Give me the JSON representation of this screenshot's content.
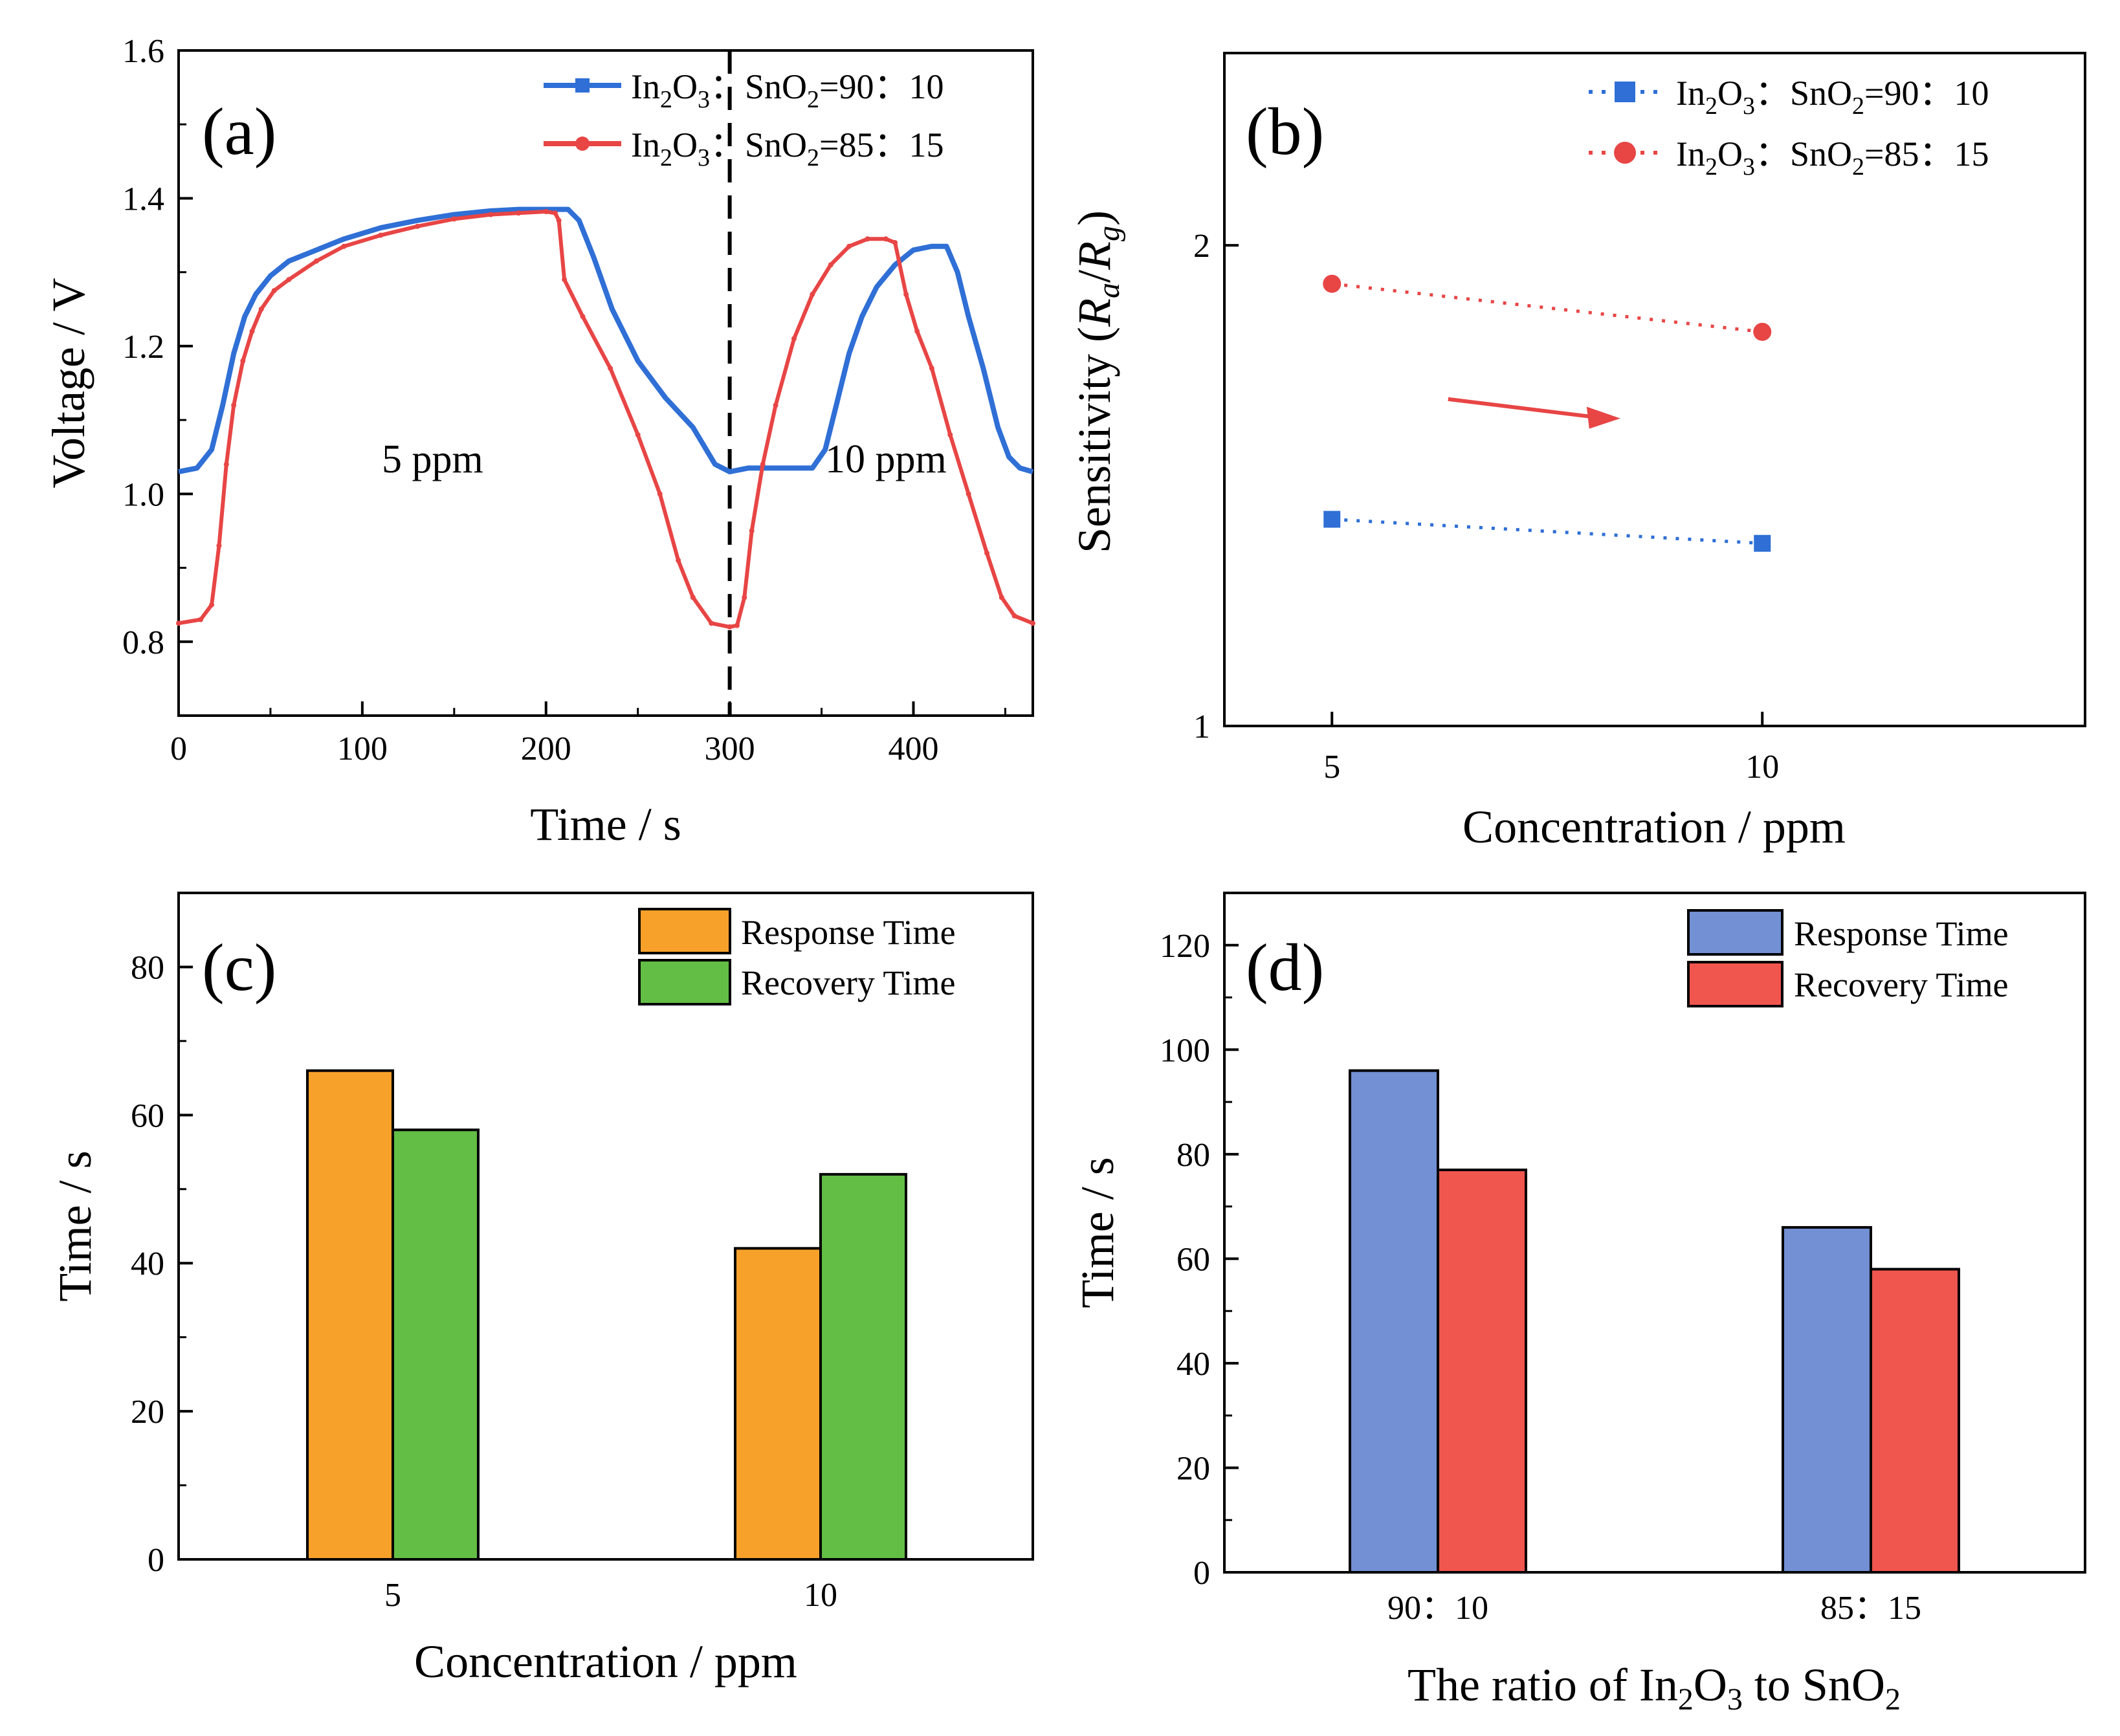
{
  "colors": {
    "blue_line": "#2f6fd6",
    "red_line": "#e84545",
    "orange_bar": "#f7a12b",
    "green_bar": "#63be45",
    "steelblue_bar": "#7290d3",
    "red_bar": "#f0554e",
    "arrow": "#e84545"
  },
  "chart_data": [
    {
      "id": "a",
      "panel_label": "(a)",
      "type": "line",
      "xlabel": "Time / s",
      "ylabel": "Voltage / V",
      "xlim": [
        0,
        465
      ],
      "ylim": [
        0.7,
        1.6
      ],
      "xticks": [
        "0",
        "100",
        "200",
        "300",
        "400"
      ],
      "yticks": [
        "0.8",
        "1.0",
        "1.2",
        "1.4",
        "1.6"
      ],
      "annotations": [
        {
          "text": "5 ppm",
          "x": 145,
          "y": 1.04
        },
        {
          "text": "10 ppm",
          "x": 390,
          "y": 1.04
        }
      ],
      "divider_x": 300,
      "series": [
        {
          "name": "In2O3:SnO2=90:10",
          "legend_main": "In",
          "legend_sub1": "2",
          "legend_mid": "O",
          "legend_sub2": "3",
          "legend_mid2": "：SnO",
          "legend_sub3": "2",
          "legend_tail": "=90：10",
          "color": "#2f6fd6",
          "marker": "square",
          "x": [
            0,
            10,
            18,
            24,
            30,
            36,
            42,
            50,
            60,
            75,
            90,
            110,
            130,
            150,
            170,
            185,
            205,
            212,
            218,
            226,
            236,
            250,
            265,
            280,
            292,
            300,
            310,
            320,
            330,
            345,
            352,
            358,
            365,
            372,
            380,
            390,
            400,
            410,
            418,
            424,
            430,
            438,
            446,
            452,
            458,
            465
          ],
          "y": [
            1.03,
            1.035,
            1.06,
            1.12,
            1.19,
            1.24,
            1.27,
            1.295,
            1.315,
            1.33,
            1.345,
            1.36,
            1.37,
            1.378,
            1.383,
            1.385,
            1.385,
            1.385,
            1.37,
            1.32,
            1.25,
            1.18,
            1.13,
            1.09,
            1.04,
            1.03,
            1.035,
            1.035,
            1.035,
            1.035,
            1.06,
            1.12,
            1.19,
            1.24,
            1.28,
            1.31,
            1.33,
            1.335,
            1.335,
            1.3,
            1.24,
            1.17,
            1.09,
            1.05,
            1.035,
            1.03
          ]
        },
        {
          "name": "In2O3:SnO2=85:15",
          "legend_main": "In",
          "legend_sub1": "2",
          "legend_mid": "O",
          "legend_sub2": "3",
          "legend_mid2": "：SnO",
          "legend_sub3": "2",
          "legend_tail": "=85：15",
          "color": "#e84545",
          "marker": "circle",
          "x": [
            0,
            12,
            18,
            22,
            26,
            30,
            35,
            40,
            45,
            52,
            60,
            75,
            90,
            110,
            130,
            150,
            170,
            185,
            200,
            205,
            207,
            210,
            220,
            235,
            250,
            262,
            272,
            280,
            290,
            300,
            304,
            308,
            312,
            318,
            325,
            335,
            345,
            355,
            365,
            375,
            385,
            390,
            396,
            402,
            410,
            420,
            430,
            440,
            448,
            455,
            465
          ],
          "y": [
            0.825,
            0.83,
            0.85,
            0.93,
            1.04,
            1.12,
            1.18,
            1.22,
            1.25,
            1.275,
            1.29,
            1.315,
            1.335,
            1.35,
            1.362,
            1.372,
            1.378,
            1.38,
            1.382,
            1.38,
            1.37,
            1.29,
            1.24,
            1.17,
            1.08,
            1.0,
            0.91,
            0.86,
            0.825,
            0.82,
            0.822,
            0.86,
            0.95,
            1.04,
            1.12,
            1.21,
            1.27,
            1.31,
            1.335,
            1.345,
            1.345,
            1.34,
            1.27,
            1.22,
            1.17,
            1.08,
            1.0,
            0.92,
            0.86,
            0.835,
            0.825
          ]
        }
      ]
    },
    {
      "id": "b",
      "panel_label": "(b)",
      "type": "scatter",
      "xlabel": "Concentration / ppm",
      "ylabel_main": "Sensitivity   (",
      "ylabel_r1": "R",
      "ylabel_s1": "a",
      "ylabel_slash": "/",
      "ylabel_r2": "R",
      "ylabel_s2": "g",
      "ylabel_close": ")",
      "xlim": [
        3.75,
        13.75
      ],
      "ylim": [
        1,
        2.4
      ],
      "xticks": [
        5,
        10
      ],
      "yticks": [
        1,
        2
      ],
      "series": [
        {
          "name": "In2O3:SnO2=90:10",
          "legend_tail": "=90：10",
          "color": "#2f6fd6",
          "marker": "square",
          "x": [
            5,
            10
          ],
          "y": [
            1.43,
            1.38
          ]
        },
        {
          "name": "In2O3:SnO2=85:15",
          "legend_tail": "=85：15",
          "color": "#e84545",
          "marker": "circle",
          "x": [
            5,
            10
          ],
          "y": [
            1.92,
            1.82
          ]
        }
      ],
      "arrow": {
        "from": [
          6.35,
          1.68
        ],
        "to": [
          8.35,
          1.64
        ]
      }
    },
    {
      "id": "c",
      "panel_label": "(c)",
      "type": "bar",
      "xlabel": "Concentration / ppm",
      "ylabel": "Time / s",
      "categories": [
        "5",
        "10"
      ],
      "ylim": [
        0,
        90
      ],
      "yticks": [
        0,
        20,
        40,
        60,
        80
      ],
      "series": [
        {
          "name": "Response Time",
          "color": "#f7a12b",
          "values": [
            66,
            42
          ]
        },
        {
          "name": "Recovery Time",
          "color": "#63be45",
          "values": [
            58,
            52
          ]
        }
      ]
    },
    {
      "id": "d",
      "panel_label": "(d)",
      "type": "bar",
      "xlabel": "The ratio of In2O3 to SnO2",
      "xlabel_p1": "The ratio of In",
      "xlabel_s1": "2",
      "xlabel_p2": "O",
      "xlabel_s2": "3",
      "xlabel_p3": " to SnO",
      "xlabel_s3": "2",
      "ylabel": "Time / s",
      "categories": [
        "90：10",
        "85：15"
      ],
      "ylim": [
        0,
        130
      ],
      "yticks": [
        0,
        20,
        40,
        60,
        80,
        100,
        120
      ],
      "series": [
        {
          "name": "Response Time",
          "color": "#7290d3",
          "values": [
            96,
            66
          ]
        },
        {
          "name": "Recovery Time",
          "color": "#f0554e",
          "values": [
            77,
            58
          ]
        }
      ]
    }
  ]
}
